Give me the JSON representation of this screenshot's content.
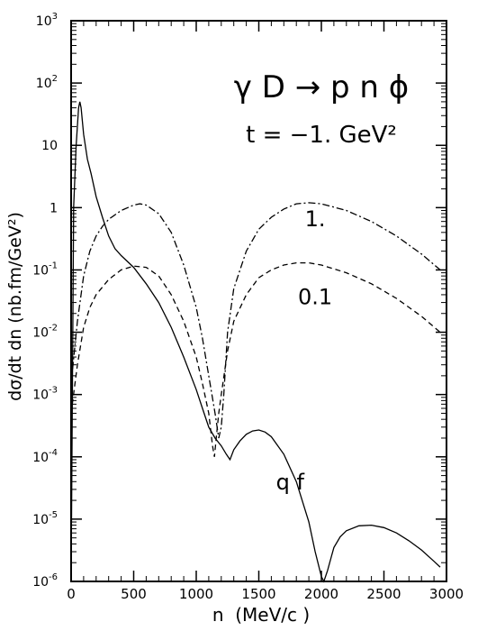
{
  "chart_data": {
    "type": "line",
    "title": "γ D → p n ϕ",
    "subtitle": "t = −1. GeV²",
    "xlabel": "n  (MeV/c )",
    "ylabel": "dσ/dt dn (nb.fm/GeV²)",
    "xlim": [
      0,
      3000
    ],
    "ylim": [
      1e-06,
      1000
    ],
    "yscale": "log",
    "grid": false,
    "x_ticks": [
      "0",
      "500",
      "1000",
      "1500",
      "2000",
      "2500",
      "3000"
    ],
    "y_tick_labels": [
      {
        "base": "10",
        "exp": "-6"
      },
      {
        "base": "10",
        "exp": "-5"
      },
      {
        "base": "10",
        "exp": "-4"
      },
      {
        "base": "10",
        "exp": "-3"
      },
      {
        "base": "10",
        "exp": "-2"
      },
      {
        "base": "10",
        "exp": "-1"
      },
      {
        "base": "1",
        "exp": ""
      },
      {
        "base": "10",
        "exp": ""
      },
      {
        "base": "10",
        "exp": "2"
      },
      {
        "base": "10",
        "exp": "3"
      }
    ],
    "series": [
      {
        "name": "q f",
        "style": "solid",
        "x": [
          0,
          20,
          40,
          60,
          70,
          80,
          100,
          130,
          160,
          200,
          250,
          300,
          350,
          400,
          500,
          600,
          700,
          800,
          900,
          1000,
          1050,
          1100,
          1150,
          1200,
          1240,
          1270,
          1300,
          1350,
          1400,
          1450,
          1500,
          1550,
          1600,
          1700,
          1800,
          1900,
          1950,
          2000,
          2020,
          2050,
          2080,
          2100,
          2150,
          2200,
          2300,
          2400,
          2500,
          2600,
          2700,
          2800,
          2900,
          2950
        ],
        "y": [
          1e-06,
          1,
          10,
          40,
          50,
          40,
          15,
          6,
          3.5,
          1.5,
          0.7,
          0.35,
          0.22,
          0.17,
          0.11,
          0.06,
          0.03,
          0.012,
          0.004,
          0.0012,
          0.0006,
          0.0003,
          0.0002,
          0.00015,
          0.00011,
          9e-05,
          0.00013,
          0.00018,
          0.00023,
          0.00026,
          0.00027,
          0.00025,
          0.00021,
          0.00011,
          4e-05,
          9e-06,
          3e-06,
          1.2e-06,
          1e-06,
          1.5e-06,
          2.5e-06,
          3.5e-06,
          5.2e-06,
          6.5e-06,
          7.8e-06,
          8e-06,
          7.3e-06,
          6e-06,
          4.5e-06,
          3.2e-06,
          2.1e-06,
          1.7e-06
        ]
      },
      {
        "name": "1.",
        "style": "dashdot",
        "x": [
          0,
          50,
          100,
          150,
          200,
          250,
          300,
          400,
          500,
          550,
          600,
          700,
          800,
          900,
          1000,
          1050,
          1100,
          1150,
          1180,
          1200,
          1220,
          1250,
          1300,
          1400,
          1500,
          1600,
          1700,
          1800,
          1900,
          2000,
          2200,
          2400,
          2600,
          2800,
          2950
        ],
        "y": [
          0.0015,
          0.015,
          0.08,
          0.2,
          0.35,
          0.5,
          0.65,
          0.9,
          1.1,
          1.15,
          1.1,
          0.8,
          0.4,
          0.12,
          0.025,
          0.008,
          0.002,
          0.0005,
          0.0002,
          0.0003,
          0.001,
          0.01,
          0.05,
          0.2,
          0.45,
          0.7,
          0.95,
          1.15,
          1.2,
          1.15,
          0.9,
          0.6,
          0.35,
          0.18,
          0.1
        ]
      },
      {
        "name": "0.1",
        "style": "dashed",
        "x": [
          0,
          50,
          100,
          150,
          200,
          300,
          400,
          500,
          600,
          700,
          800,
          900,
          1000,
          1050,
          1100,
          1130,
          1145,
          1160,
          1180,
          1200,
          1250,
          1300,
          1400,
          1500,
          1600,
          1700,
          1800,
          1900,
          2000,
          2200,
          2400,
          2600,
          2800,
          2950
        ],
        "y": [
          0.0005,
          0.003,
          0.012,
          0.025,
          0.04,
          0.07,
          0.1,
          0.115,
          0.11,
          0.08,
          0.04,
          0.015,
          0.004,
          0.0015,
          0.0005,
          0.00015,
          0.0001,
          0.0002,
          0.0005,
          0.001,
          0.005,
          0.015,
          0.04,
          0.075,
          0.1,
          0.12,
          0.13,
          0.13,
          0.12,
          0.09,
          0.06,
          0.035,
          0.018,
          0.01
        ]
      }
    ],
    "annotations": [
      {
        "text": "1.",
        "x": 1950,
        "y": 0.5
      },
      {
        "text": "0.1",
        "x": 1950,
        "y": 0.028
      },
      {
        "text": "q f",
        "x": 1750,
        "y": 3e-05
      }
    ]
  }
}
